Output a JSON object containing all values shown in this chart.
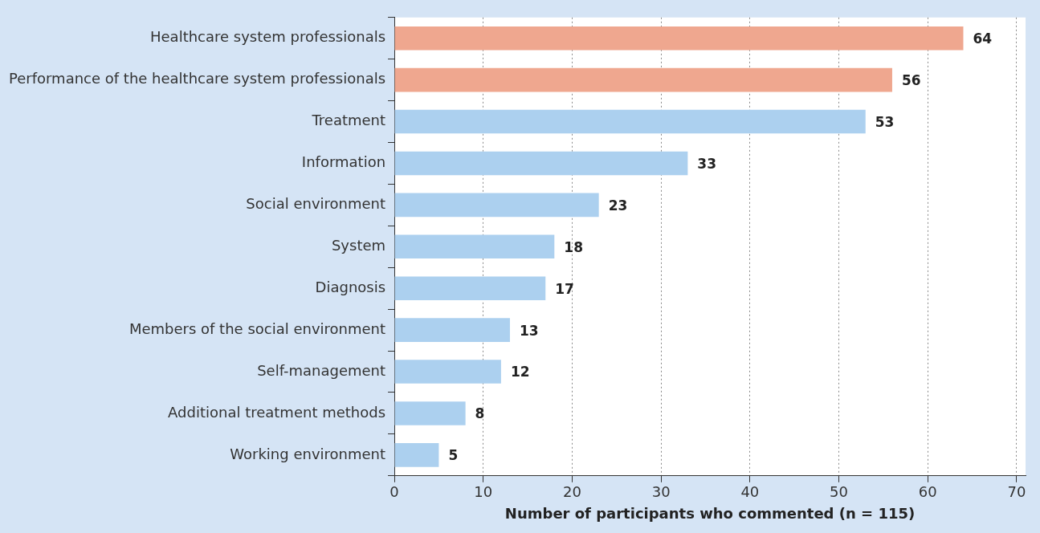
{
  "chart_data": {
    "type": "bar",
    "orientation": "horizontal",
    "xlabel": "Number of participants who commented (n = 115)",
    "categories": [
      "Healthcare system professionals",
      "Performance of the healthcare system professionals",
      "Treatment",
      "Information",
      "Social environment",
      "System",
      "Diagnosis",
      "Members of the social environment",
      "Self-management",
      "Additional treatment methods",
      "Working environment"
    ],
    "values": [
      64,
      56,
      53,
      33,
      23,
      18,
      17,
      13,
      12,
      8,
      5
    ],
    "colors": [
      "#efa78f",
      "#efa78f",
      "#acd0ef",
      "#acd0ef",
      "#acd0ef",
      "#acd0ef",
      "#acd0ef",
      "#acd0ef",
      "#acd0ef",
      "#acd0ef",
      "#acd0ef"
    ],
    "xlim": [
      0,
      71
    ],
    "xticks": [
      0,
      10,
      20,
      30,
      40,
      50,
      60,
      70
    ],
    "grid": "x",
    "legend": false,
    "data_labels": true
  }
}
